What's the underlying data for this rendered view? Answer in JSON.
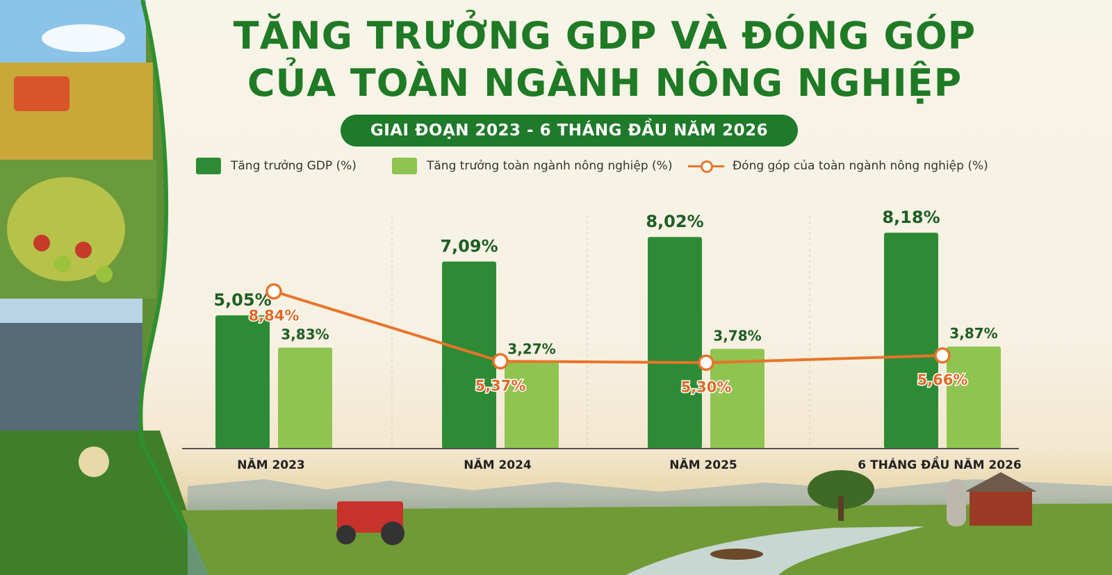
{
  "title_lines": [
    "TĂNG TRƯỞNG GDP VÀ ĐÓNG GÓP",
    "CỦA TOÀN NGÀNH NÔNG NGHIỆP"
  ],
  "subtitle": "GIAI ĐOẠN 2023 - 6 THÁNG ĐẦU NĂM 2026",
  "colors": {
    "title": "#1f7a25",
    "gdp_bar": "#2e8b35",
    "agri_bar": "#8fc451",
    "line": "#e8742a"
  },
  "legend": [
    {
      "label": "Tăng trưởng GDP (%)"
    },
    {
      "label": "Tăng trưởng toàn ngành nông nghiệp (%)"
    },
    {
      "label": "Đóng góp của toàn ngành nông nghiệp (%)"
    }
  ],
  "chart_data": {
    "type": "bar",
    "categories": [
      "NĂM 2023",
      "NĂM 2024",
      "NĂM 2025",
      "6 THÁNG ĐẦU NĂM 2026"
    ],
    "series": [
      {
        "name": "Tăng trưởng GDP (%)",
        "type": "bar",
        "values": [
          5.05,
          7.09,
          8.02,
          8.18
        ],
        "labels": [
          "5,05%",
          "7,09%",
          "8,02%",
          "8,18%"
        ]
      },
      {
        "name": "Tăng trưởng toàn ngành nông nghiệp (%)",
        "type": "bar",
        "values": [
          3.83,
          3.27,
          3.78,
          3.87
        ],
        "labels": [
          "3,83%",
          "3,27%",
          "3,78%",
          "3,87%"
        ]
      },
      {
        "name": "Đóng góp của toàn ngành nông nghiệp (%)",
        "type": "line",
        "values": [
          8.84,
          5.37,
          5.3,
          5.66
        ],
        "labels": [
          "8,84%",
          "5,37%",
          "5,30%",
          "5,66%"
        ]
      }
    ],
    "legend_position": "top",
    "grid": false
  }
}
